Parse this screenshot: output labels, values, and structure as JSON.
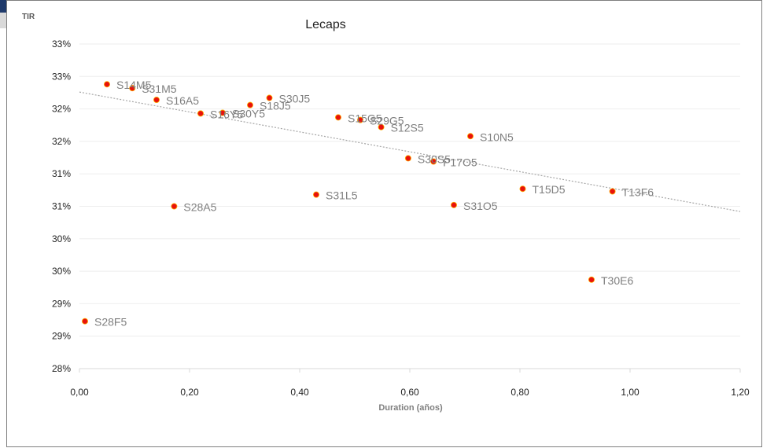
{
  "chart_data": {
    "type": "scatter",
    "title": "Lecaps",
    "xlabel": "Duration (años)",
    "ylabel": "TIR",
    "xlim": [
      0,
      1.2
    ],
    "ylim": [
      28,
      33
    ],
    "x_ticks": [
      "0,00",
      "0,20",
      "0,40",
      "0,60",
      "0,80",
      "1,00",
      "1,20"
    ],
    "y_ticks": [
      "28%",
      "29%",
      "29%",
      "30%",
      "30%",
      "31%",
      "31%",
      "32%",
      "32%",
      "33%",
      "33%"
    ],
    "grid": true,
    "trendline": {
      "type": "linear",
      "start": [
        0,
        32.26
      ],
      "end": [
        1.2,
        30.42
      ]
    },
    "point_color": "#e8120c",
    "points": [
      {
        "label": "S28F5",
        "x": 0.01,
        "y": 28.73
      },
      {
        "label": "S14M5",
        "x": 0.05,
        "y": 32.38
      },
      {
        "label": "S31M5",
        "x": 0.096,
        "y": 32.32
      },
      {
        "label": "S16A5",
        "x": 0.14,
        "y": 32.14
      },
      {
        "label": "S28A5",
        "x": 0.172,
        "y": 30.5
      },
      {
        "label": "S16Y5",
        "x": 0.22,
        "y": 31.93
      },
      {
        "label": "S30Y5",
        "x": 0.26,
        "y": 31.94
      },
      {
        "label": "S18J5",
        "x": 0.31,
        "y": 32.06
      },
      {
        "label": "S30J5",
        "x": 0.345,
        "y": 32.17
      },
      {
        "label": "S31L5",
        "x": 0.43,
        "y": 30.68
      },
      {
        "label": "S15G5",
        "x": 0.47,
        "y": 31.87
      },
      {
        "label": "S29G5",
        "x": 0.51,
        "y": 31.83
      },
      {
        "label": "S12S5",
        "x": 0.548,
        "y": 31.72
      },
      {
        "label": "S30S5",
        "x": 0.597,
        "y": 31.24
      },
      {
        "label": "P17O5",
        "x": 0.643,
        "y": 31.19
      },
      {
        "label": "S31O5",
        "x": 0.68,
        "y": 30.52
      },
      {
        "label": "S10N5",
        "x": 0.71,
        "y": 31.58
      },
      {
        "label": "T15D5",
        "x": 0.805,
        "y": 30.77
      },
      {
        "label": "T30E6",
        "x": 0.93,
        "y": 29.37
      },
      {
        "label": "T13F6",
        "x": 0.968,
        "y": 30.73
      }
    ]
  }
}
